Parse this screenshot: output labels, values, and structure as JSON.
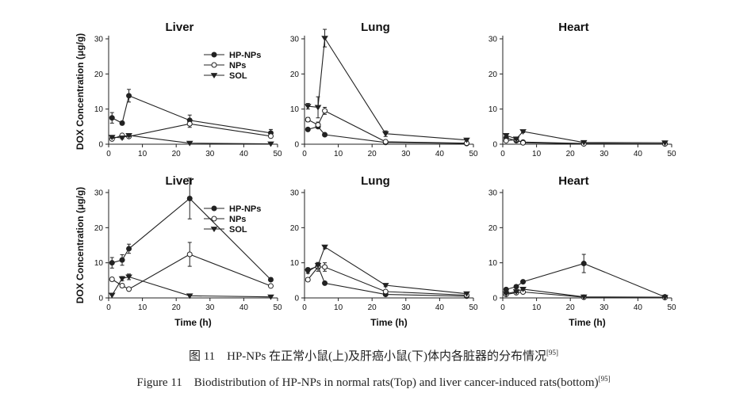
{
  "chart_data": [
    {
      "type": "line",
      "title": "Liver",
      "row": "top",
      "ylabel": "DOX Concentration (μg/g)",
      "xlabel": "",
      "xlim": [
        0,
        50
      ],
      "ylim": [
        0,
        30
      ],
      "xticks": [
        "0",
        "10",
        "20",
        "30",
        "40",
        "50"
      ],
      "yticks": [
        "0",
        "10",
        "20",
        "30"
      ],
      "legend": true,
      "series": [
        {
          "name": "HP-NPs",
          "marker": "filled-circle",
          "x": [
            1,
            4,
            6,
            24,
            48
          ],
          "y": [
            7.5,
            6,
            13.8,
            6.8,
            3.2
          ],
          "err": [
            1.5,
            0.5,
            1.8,
            1.5,
            1
          ]
        },
        {
          "name": "NPs",
          "marker": "open-circle",
          "x": [
            1,
            4,
            6,
            24,
            48
          ],
          "y": [
            1.5,
            2.5,
            2.2,
            5.8,
            2.3
          ],
          "err": [
            0.3,
            0.4,
            0.3,
            1,
            0.4
          ]
        },
        {
          "name": "SOL",
          "marker": "filled-triangle",
          "x": [
            1,
            4,
            6,
            24,
            48
          ],
          "y": [
            2,
            1.8,
            2.5,
            0.3,
            0.1
          ],
          "err": [
            0.3,
            0.3,
            0.3,
            0.1,
            0.05
          ]
        }
      ]
    },
    {
      "type": "line",
      "title": "Lung",
      "row": "top",
      "ylabel": "",
      "xlabel": "",
      "xlim": [
        0,
        50
      ],
      "ylim": [
        0,
        30
      ],
      "xticks": [
        "0",
        "10",
        "20",
        "30",
        "40",
        "50"
      ],
      "yticks": [
        "0",
        "10",
        "20",
        "30"
      ],
      "legend": false,
      "series": [
        {
          "name": "HP-NPs",
          "marker": "filled-circle",
          "x": [
            1,
            4,
            6,
            24,
            48
          ],
          "y": [
            4.2,
            5,
            2.7,
            0.5,
            0.2
          ],
          "err": [
            0.4,
            0.5,
            0.3,
            0.1,
            0.05
          ]
        },
        {
          "name": "NPs",
          "marker": "open-circle",
          "x": [
            1,
            4,
            6,
            24,
            48
          ],
          "y": [
            7,
            5.5,
            9.5,
            0.7,
            0.3
          ],
          "err": [
            0.6,
            0.8,
            1,
            0.2,
            0.1
          ]
        },
        {
          "name": "SOL",
          "marker": "filled-triangle",
          "x": [
            1,
            4,
            6,
            24,
            48
          ],
          "y": [
            10.8,
            10.5,
            30.2,
            3,
            1.2
          ],
          "err": [
            0.8,
            3,
            2.5,
            0.8,
            0.3
          ]
        }
      ]
    },
    {
      "type": "line",
      "title": "Heart",
      "row": "top",
      "ylabel": "",
      "xlabel": "",
      "xlim": [
        0,
        50
      ],
      "ylim": [
        0,
        30
      ],
      "xticks": [
        "0",
        "10",
        "20",
        "30",
        "40",
        "50"
      ],
      "yticks": [
        "0",
        "10",
        "20",
        "30"
      ],
      "legend": false,
      "series": [
        {
          "name": "HP-NPs",
          "marker": "filled-circle",
          "x": [
            1,
            4,
            6,
            24,
            48
          ],
          "y": [
            1.8,
            1,
            0.6,
            0.2,
            0.1
          ],
          "err": [
            0.3,
            0.2,
            0.1,
            0.05,
            0.05
          ]
        },
        {
          "name": "NPs",
          "marker": "open-circle",
          "x": [
            1,
            4,
            6,
            24,
            48
          ],
          "y": [
            1,
            1.3,
            0.4,
            0.1,
            0.1
          ],
          "err": [
            0.2,
            0.2,
            0.1,
            0.05,
            0.05
          ]
        },
        {
          "name": "SOL",
          "marker": "filled-triangle",
          "x": [
            1,
            4,
            6,
            24,
            48
          ],
          "y": [
            2.5,
            1.5,
            3.6,
            0.5,
            0.4
          ],
          "err": [
            0.5,
            0.3,
            0.3,
            0.1,
            0.1
          ]
        }
      ]
    },
    {
      "type": "line",
      "title": "Liver",
      "row": "bottom",
      "ylabel": "DOX Concentration (μg/g)",
      "xlabel": "Time (h)",
      "xlim": [
        0,
        50
      ],
      "ylim": [
        0,
        30
      ],
      "xticks": [
        "0",
        "10",
        "20",
        "30",
        "40",
        "50"
      ],
      "yticks": [
        "0",
        "10",
        "20",
        "30"
      ],
      "legend": true,
      "series": [
        {
          "name": "HP-NPs",
          "marker": "filled-circle",
          "x": [
            1,
            4,
            6,
            24,
            48
          ],
          "y": [
            10,
            10.8,
            14,
            28.3,
            5.2
          ],
          "err": [
            1.5,
            1.5,
            1.3,
            5.8,
            0.5
          ]
        },
        {
          "name": "NPs",
          "marker": "open-circle",
          "x": [
            1,
            4,
            6,
            24,
            48
          ],
          "y": [
            5.3,
            3.5,
            2.5,
            12.4,
            3.4
          ],
          "err": [
            0.5,
            0.5,
            0.4,
            3.4,
            0.3
          ]
        },
        {
          "name": "SOL",
          "marker": "filled-triangle",
          "x": [
            1,
            4,
            6,
            24,
            48
          ],
          "y": [
            0.8,
            5.5,
            6,
            0.6,
            0.3
          ],
          "err": [
            0.2,
            0.6,
            0.8,
            0.1,
            0.1
          ]
        }
      ]
    },
    {
      "type": "line",
      "title": "Lung",
      "row": "bottom",
      "ylabel": "",
      "xlabel": "Time (h)",
      "xlim": [
        0,
        50
      ],
      "ylim": [
        0,
        30
      ],
      "xticks": [
        "0",
        "10",
        "20",
        "30",
        "40",
        "50"
      ],
      "yticks": [
        "0",
        "10",
        "20",
        "30"
      ],
      "legend": false,
      "series": [
        {
          "name": "HP-NPs",
          "marker": "filled-circle",
          "x": [
            1,
            4,
            6,
            24,
            48
          ],
          "y": [
            8,
            9,
            4.2,
            1,
            0.5
          ],
          "err": [
            0.5,
            0.8,
            0.4,
            0.2,
            0.1
          ]
        },
        {
          "name": "NPs",
          "marker": "open-circle",
          "x": [
            1,
            4,
            6,
            24,
            48
          ],
          "y": [
            5.2,
            8.8,
            8.8,
            1.8,
            0.8
          ],
          "err": [
            0.5,
            1.2,
            1.2,
            0.3,
            0.2
          ]
        },
        {
          "name": "SOL",
          "marker": "filled-triangle",
          "x": [
            1,
            4,
            6,
            24,
            48
          ],
          "y": [
            7.5,
            9.3,
            14.5,
            3.6,
            1.2
          ],
          "err": [
            0.5,
            0.8,
            0.5,
            0.4,
            0.2
          ]
        }
      ]
    },
    {
      "type": "line",
      "title": "Heart",
      "row": "bottom",
      "ylabel": "",
      "xlabel": "Time (h)",
      "xlim": [
        0,
        50
      ],
      "ylim": [
        0,
        30
      ],
      "xticks": [
        "0",
        "10",
        "20",
        "30",
        "40",
        "50"
      ],
      "yticks": [
        "0",
        "10",
        "20",
        "30"
      ],
      "legend": false,
      "series": [
        {
          "name": "HP-NPs",
          "marker": "filled-circle",
          "x": [
            1,
            4,
            6,
            24,
            48
          ],
          "y": [
            2.4,
            3.2,
            4.6,
            9.8,
            0.3
          ],
          "err": [
            0.3,
            0.5,
            0.4,
            2.6,
            0.1
          ]
        },
        {
          "name": "NPs",
          "marker": "open-circle",
          "x": [
            1,
            4,
            6,
            24,
            48
          ],
          "y": [
            1,
            1.5,
            1.7,
            0.2,
            0.1
          ],
          "err": [
            0.2,
            0.3,
            0.3,
            0.05,
            0.05
          ]
        },
        {
          "name": "SOL",
          "marker": "filled-triangle",
          "x": [
            1,
            4,
            6,
            24,
            48
          ],
          "y": [
            1.2,
            1.8,
            2.5,
            0.3,
            0.2
          ],
          "err": [
            0.2,
            0.3,
            0.3,
            0.05,
            0.05
          ]
        }
      ]
    }
  ],
  "caption_zh": "图 11　HP-NPs 在正常小鼠(上)及肝癌小鼠(下)体内各脏器的分布情况",
  "caption_en": "Figure 11　Biodistribution of HP-NPs in normal rats(Top) and liver cancer-induced rats(bottom)",
  "caption_ref": "[95]"
}
